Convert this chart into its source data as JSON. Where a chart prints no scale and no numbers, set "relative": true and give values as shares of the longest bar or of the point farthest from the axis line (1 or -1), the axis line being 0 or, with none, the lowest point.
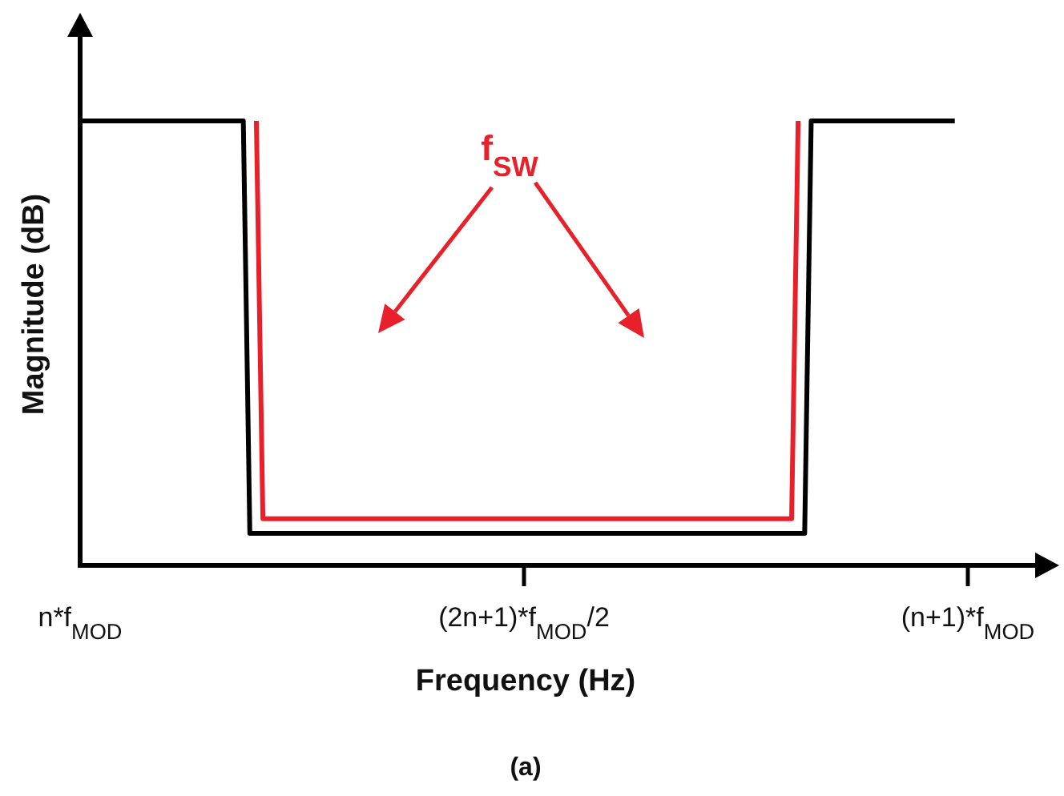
{
  "chart_data": {
    "type": "line",
    "xlabel": "Frequency (Hz)",
    "ylabel": "Magnitude (dB)",
    "relative": true,
    "tick_labels": "x",
    "categories": [
      "n*f$_{MOD}$",
      null,
      null,
      null,
      null,
      null,
      null,
      null,
      null,
      null,
      null,
      null,
      null,
      null,
      null,
      null,
      null,
      null,
      null,
      null,
      null,
      null,
      null,
      null,
      null,
      null,
      null,
      null,
      null,
      null,
      null,
      null,
      null,
      null,
      null,
      null,
      null,
      null,
      null,
      null,
      null,
      null,
      null,
      null,
      null,
      null,
      null,
      null,
      null,
      null,
      null,
      null,
      null,
      null,
      null,
      null,
      null,
      null,
      null,
      null,
      null,
      null,
      null,
      null,
      null,
      null,
      null,
      null,
      "(2n+1)*f$_{MOD}$/2",
      null,
      null,
      null,
      null,
      null,
      null,
      null,
      null,
      null,
      null,
      null,
      null,
      null,
      null,
      null,
      null,
      null,
      null,
      null,
      null,
      null,
      null,
      null,
      null,
      null,
      null,
      null,
      null,
      null,
      null,
      null,
      null,
      null,
      null,
      null,
      null,
      null,
      null,
      null,
      null,
      null,
      null,
      null,
      null,
      null,
      null,
      null,
      null,
      null,
      null,
      null,
      null,
      null,
      null,
      null,
      null,
      null,
      null,
      null,
      null,
      null,
      null,
      null,
      null,
      null,
      null,
      null,
      "(n+1)*f$_{MOD}$"
    ],
    "series": [
      {
        "color": "#000000",
        "values": [
          1,
          1,
          1,
          1,
          1,
          1,
          1,
          1,
          1,
          1,
          1,
          1,
          1,
          1,
          1,
          1,
          1,
          1,
          1,
          1,
          1,
          1,
          1,
          1,
          1,
          1,
          0.072,
          0.072,
          0.072,
          0.072,
          0.072,
          0.072,
          0.072,
          0.072,
          0.072,
          0.072,
          0.072,
          0.072,
          0.072,
          0.072,
          0.072,
          0.072,
          0.072,
          0.072,
          0.072,
          0.072,
          0.072,
          0.072,
          0.072,
          0.072,
          0.072,
          0.072,
          0.072,
          0.072,
          0.072,
          0.072,
          0.072,
          0.072,
          0.072,
          0.072,
          0.072,
          0.072,
          0.072,
          0.072,
          0.072,
          0.072,
          0.072,
          0.072,
          0.072,
          0.072,
          0.072,
          0.072,
          0.072,
          0.072,
          0.072,
          0.072,
          0.072,
          0.072,
          0.072,
          0.072,
          0.072,
          0.072,
          0.072,
          0.072,
          0.072,
          0.072,
          0.072,
          0.072,
          0.072,
          0.072,
          0.072,
          0.072,
          0.072,
          0.072,
          0.072,
          0.072,
          0.072,
          0.072,
          0.072,
          0.072,
          0.072,
          0.072,
          0.072,
          0.072,
          0.072,
          0.072,
          0.072,
          0.072,
          0.072,
          0.072,
          0.072,
          0.072,
          1,
          1,
          1,
          1,
          1,
          1,
          1,
          1,
          1,
          1,
          1,
          1,
          1,
          1,
          1,
          1,
          1,
          1,
          1,
          1,
          1,
          1,
          1,
          null,
          null
        ]
      },
      {
        "color": "#e8202a",
        "values": [
          null,
          null,
          null,
          null,
          null,
          null,
          null,
          null,
          null,
          null,
          null,
          null,
          null,
          null,
          null,
          null,
          null,
          null,
          null,
          null,
          null,
          null,
          null,
          null,
          null,
          null,
          null,
          1,
          0.105,
          0.105,
          0.105,
          0.105,
          0.105,
          0.105,
          0.105,
          0.105,
          0.105,
          0.105,
          0.105,
          0.105,
          0.105,
          0.105,
          0.105,
          0.105,
          0.105,
          0.105,
          0.105,
          0.105,
          0.105,
          0.105,
          0.105,
          0.105,
          0.105,
          0.105,
          0.105,
          0.105,
          0.105,
          0.105,
          0.105,
          0.105,
          0.105,
          0.105,
          0.105,
          0.105,
          0.105,
          0.105,
          0.105,
          0.105,
          0.105,
          0.105,
          0.105,
          0.105,
          0.105,
          0.105,
          0.105,
          0.105,
          0.105,
          0.105,
          0.105,
          0.105,
          0.105,
          0.105,
          0.105,
          0.105,
          0.105,
          0.105,
          0.105,
          0.105,
          0.105,
          0.105,
          0.105,
          0.105,
          0.105,
          0.105,
          0.105,
          0.105,
          0.105,
          0.105,
          0.105,
          0.105,
          0.105,
          0.105,
          0.105,
          0.105,
          0.105,
          0.105,
          0.105,
          0.105,
          0.105,
          0.105,
          1,
          null,
          null,
          null,
          null,
          null,
          null,
          null,
          null,
          null,
          null,
          null,
          null,
          null,
          null,
          null,
          null,
          null,
          null,
          null,
          null,
          null,
          null,
          null,
          null,
          null,
          null
        ]
      }
    ],
    "annotations": [
      "f$_{SW}$",
      "(a)"
    ]
  }
}
